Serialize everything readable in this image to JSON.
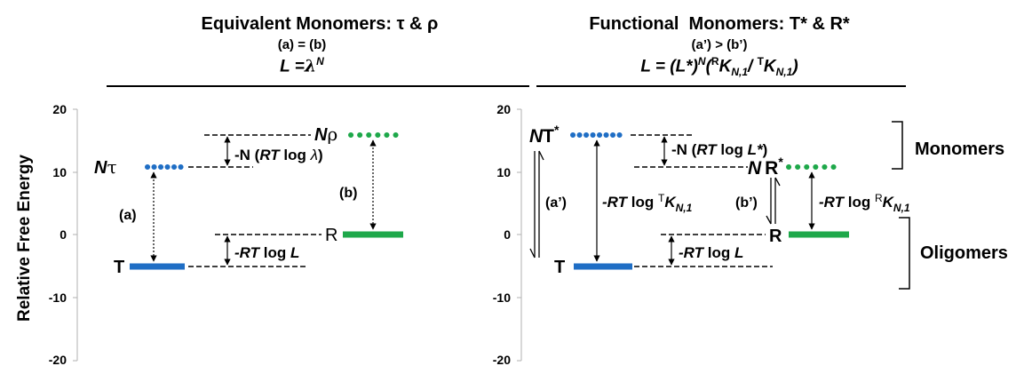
{
  "left_panel": {
    "title": "Equivalent Monomers: τ & ρ",
    "relation": "(a) = (b)",
    "formula": "L = λ^N",
    "formula_parts": {
      "lhs": "L =",
      "base": "λ",
      "exp": "N"
    },
    "levels": {
      "n_tau": {
        "coef": "N",
        "symbol": "τ",
        "energy": 10.5
      },
      "n_rho": {
        "coef": "N",
        "symbol": "ρ",
        "energy": 16
      },
      "t": {
        "label": "T",
        "energy": -5
      },
      "r": {
        "label": "R",
        "energy": 0
      }
    },
    "annotations": {
      "monomer_gap": {
        "a": "-N (",
        "b": "RT",
        "c": " log ",
        "d": "λ",
        "e": ")"
      },
      "oligomer_gap": {
        "a": "-RT",
        "b": " log ",
        "c": "L"
      },
      "arrow_a": "(a)",
      "arrow_b": "(b)"
    }
  },
  "right_panel": {
    "title": "Functional  Monomers: T* & R*",
    "relation": "(a’) > (b’)",
    "formula": "L = (L*)^N(^RK_N,1/ ^TK_N,1)",
    "formula_parts": {
      "a": "L",
      "b": " = (",
      "c": "L*",
      "d": ")",
      "e": "N",
      "f": "(",
      "g": "R",
      "h": "K",
      "i": "N,1",
      "j": "/ ",
      "k": "T",
      "l": "K",
      "m": "N,1",
      "n": ")"
    },
    "levels": {
      "n_tstar": {
        "coef": "N",
        "symbol": "T",
        "star": "*",
        "energy": 16
      },
      "n_rstar": {
        "coef": "N",
        "symbol": "R",
        "star": "*",
        "energy": 11
      },
      "t": {
        "label": "T",
        "energy": -5
      },
      "r": {
        "label": "R",
        "energy": 0
      }
    },
    "annotations": {
      "monomer_gap": {
        "a": "-N (",
        "b": "RT",
        "c": " log ",
        "d": "L*",
        "e": ")"
      },
      "oligomer_gap": {
        "a": "-RT",
        "b": " log ",
        "c": "L"
      },
      "t_gap": {
        "a": "-RT",
        "b": " log ",
        "c": "T",
        "d": "K",
        "e": "N,1"
      },
      "r_gap": {
        "a": "-RT",
        "b": " log ",
        "c": "R",
        "d": "K",
        "e": "N,1"
      },
      "arrow_a": "(a’)",
      "arrow_b": "(b’)"
    },
    "brackets": {
      "monomers": "Monomers",
      "oligomers": "Oligomers"
    }
  },
  "y_axis": {
    "label": "Relative Free Energy",
    "ticks": [
      "20",
      "10",
      "0",
      "-10",
      "-20"
    ],
    "range": [
      -20,
      20
    ]
  },
  "colors": {
    "blue": "#1f6ec5",
    "green": "#1ea84a",
    "black": "#000000"
  }
}
